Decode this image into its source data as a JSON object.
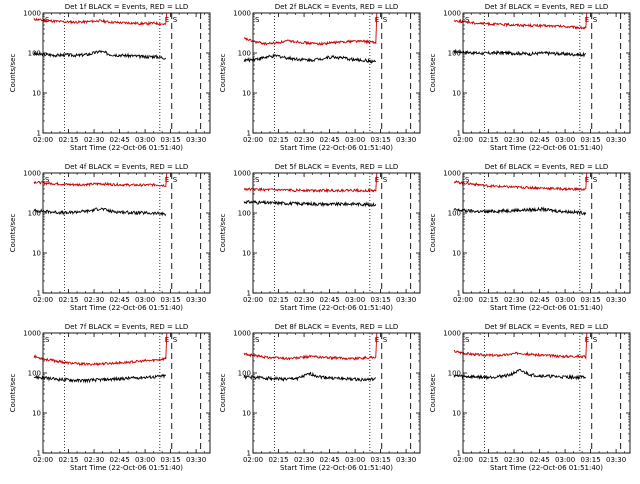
{
  "common": {
    "ylabel": "Counts/sec",
    "xlabel": "Start Time (22-Oct-06 01:51:40)",
    "y_ticks": [
      "1000",
      "100",
      "10",
      "1"
    ],
    "x_ticks": [
      "02:00",
      "02:15",
      "02:30",
      "02:45",
      "03:00",
      "03:15",
      "03:30"
    ],
    "marker_left": "S",
    "marker_right_1": "E",
    "marker_right_2": "S",
    "colors": {
      "events": "#000000",
      "lld": "#cc0000"
    }
  },
  "chart_data": [
    {
      "type": "line",
      "title": "Det 1f BLACK = Events, RED = LLD",
      "ylog": true,
      "ylim": [
        1,
        1000
      ],
      "xlim_minutes": [
        8.3,
        106.5
      ],
      "events_level": 90,
      "lld_level": 650,
      "series": [
        {
          "name": "Events",
          "values": [
            95,
            92,
            88,
            90,
            87,
            93,
            110,
            92,
            88,
            85,
            80,
            82,
            75
          ]
        },
        {
          "name": "LLD",
          "values": [
            700,
            650,
            620,
            600,
            590,
            610,
            640,
            590,
            570,
            560,
            540,
            560,
            520
          ]
        }
      ]
    },
    {
      "type": "line",
      "title": "Det 2f BLACK = Events, RED = LLD",
      "ylog": true,
      "ylim": [
        1,
        1000
      ],
      "xlim_minutes": [
        8.3,
        106.5
      ],
      "events_level": 70,
      "lld_level": 200,
      "series": [
        {
          "name": "Events",
          "values": [
            65,
            70,
            78,
            85,
            75,
            70,
            66,
            72,
            80,
            75,
            68,
            65,
            60
          ]
        },
        {
          "name": "LLD",
          "values": [
            230,
            190,
            170,
            180,
            200,
            190,
            175,
            170,
            180,
            190,
            200,
            195,
            180
          ]
        }
      ]
    },
    {
      "type": "line",
      "title": "Det 3f BLACK = Events, RED = LLD",
      "ylog": true,
      "ylim": [
        1,
        1000
      ],
      "xlim_minutes": [
        8.3,
        106.5
      ],
      "events_level": 100,
      "lld_level": 500,
      "series": [
        {
          "name": "Events",
          "values": [
            110,
            105,
            100,
            98,
            102,
            100,
            98,
            95,
            100,
            98,
            95,
            92,
            90
          ]
        },
        {
          "name": "LLD",
          "values": [
            650,
            600,
            560,
            540,
            520,
            510,
            500,
            490,
            480,
            470,
            460,
            440,
            420
          ]
        }
      ]
    },
    {
      "type": "line",
      "title": "Det 4f BLACK = Events, RED = LLD",
      "ylog": true,
      "ylim": [
        1,
        1000
      ],
      "xlim_minutes": [
        8.3,
        106.5
      ],
      "events_level": 105,
      "lld_level": 520,
      "series": [
        {
          "name": "Events",
          "values": [
            115,
            110,
            105,
            100,
            108,
            112,
            130,
            110,
            105,
            102,
            100,
            98,
            95
          ]
        },
        {
          "name": "LLD",
          "values": [
            600,
            560,
            540,
            520,
            510,
            520,
            540,
            520,
            510,
            500,
            500,
            510,
            490
          ]
        }
      ]
    },
    {
      "type": "line",
      "title": "Det 5f BLACK = Events, RED = LLD",
      "ylog": true,
      "ylim": [
        1,
        1000
      ],
      "xlim_minutes": [
        8.3,
        106.5
      ],
      "events_level": 180,
      "lld_level": 380,
      "series": [
        {
          "name": "Events",
          "values": [
            190,
            185,
            180,
            178,
            175,
            172,
            170,
            168,
            165,
            168,
            170,
            165,
            160
          ]
        },
        {
          "name": "LLD",
          "values": [
            400,
            390,
            380,
            375,
            370,
            372,
            370,
            368,
            365,
            368,
            370,
            365,
            360
          ]
        }
      ]
    },
    {
      "type": "line",
      "title": "Det 6f BLACK = Events, RED = LLD",
      "ylog": true,
      "ylim": [
        1,
        1000
      ],
      "xlim_minutes": [
        8.3,
        106.5
      ],
      "events_level": 110,
      "lld_level": 450,
      "series": [
        {
          "name": "Events",
          "values": [
            120,
            115,
            110,
            108,
            112,
            115,
            118,
            120,
            125,
            115,
            110,
            105,
            100
          ]
        },
        {
          "name": "LLD",
          "values": [
            600,
            560,
            520,
            480,
            460,
            450,
            440,
            430,
            420,
            410,
            400,
            395,
            390
          ]
        }
      ]
    },
    {
      "type": "line",
      "title": "Det 7f BLACK = Events, RED = LLD",
      "ylog": true,
      "ylim": [
        1,
        1000
      ],
      "xlim_minutes": [
        8.3,
        106.5
      ],
      "events_level": 75,
      "lld_level": 200,
      "series": [
        {
          "name": "Events",
          "values": [
            80,
            75,
            70,
            68,
            65,
            66,
            68,
            70,
            72,
            75,
            78,
            80,
            85
          ]
        },
        {
          "name": "LLD",
          "values": [
            260,
            220,
            200,
            180,
            170,
            165,
            170,
            175,
            180,
            190,
            200,
            210,
            230
          ]
        }
      ]
    },
    {
      "type": "line",
      "title": "Det 8f BLACK = Events, RED = LLD",
      "ylog": true,
      "ylim": [
        1,
        1000
      ],
      "xlim_minutes": [
        8.3,
        106.5
      ],
      "events_level": 75,
      "lld_level": 250,
      "series": [
        {
          "name": "Events",
          "values": [
            80,
            78,
            75,
            72,
            70,
            75,
            95,
            80,
            75,
            72,
            70,
            68,
            70
          ]
        },
        {
          "name": "LLD",
          "values": [
            300,
            270,
            250,
            240,
            230,
            240,
            260,
            250,
            240,
            235,
            230,
            240,
            250
          ]
        }
      ]
    },
    {
      "type": "line",
      "title": "Det 9f BLACK = Events, RED = LLD",
      "ylog": true,
      "ylim": [
        1,
        1000
      ],
      "xlim_minutes": [
        8.3,
        106.5
      ],
      "events_level": 80,
      "lld_level": 280,
      "series": [
        {
          "name": "Events",
          "values": [
            85,
            82,
            80,
            78,
            82,
            88,
            115,
            90,
            85,
            82,
            80,
            78,
            80
          ]
        },
        {
          "name": "LLD",
          "values": [
            350,
            310,
            290,
            280,
            275,
            290,
            320,
            290,
            280,
            270,
            260,
            265,
            250
          ]
        }
      ]
    }
  ]
}
